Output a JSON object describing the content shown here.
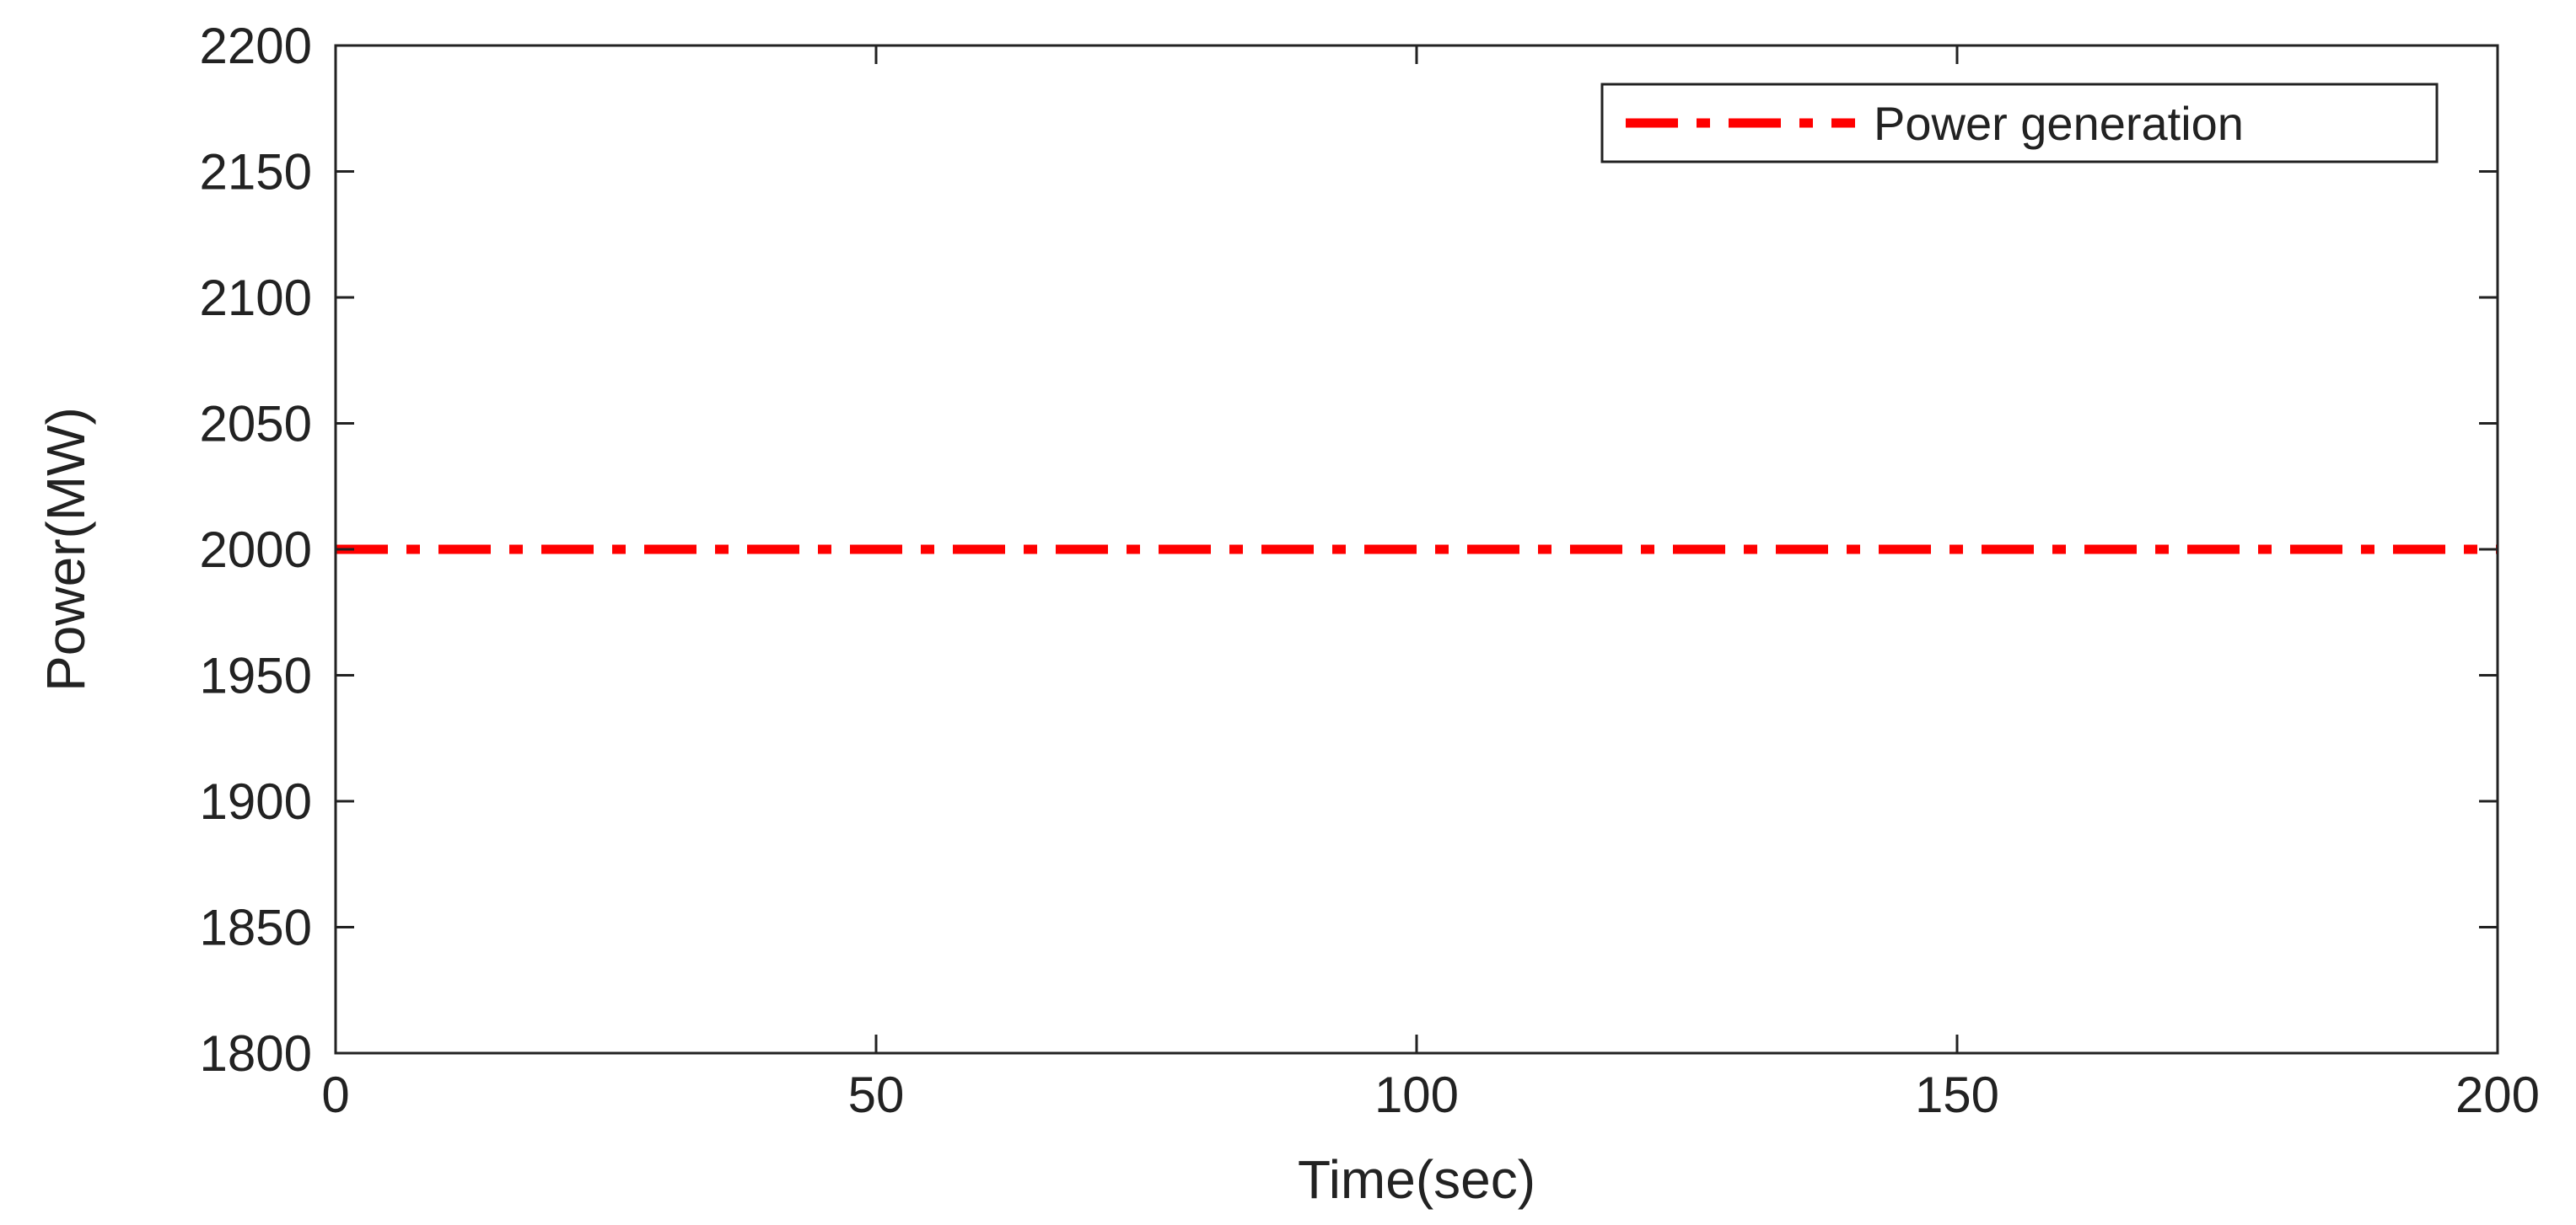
{
  "chart_data": {
    "type": "line",
    "title": "",
    "xlabel": "Time(sec)",
    "ylabel": "Power(MW)",
    "xlim": [
      0,
      200
    ],
    "ylim": [
      1800,
      2200
    ],
    "xticks": [
      0,
      50,
      100,
      150,
      200
    ],
    "yticks": [
      1800,
      1850,
      1900,
      1950,
      2000,
      2050,
      2100,
      2150,
      2200
    ],
    "grid": false,
    "legend_position": "top-right",
    "series": [
      {
        "name": "Power generation",
        "color": "#ff0000",
        "line_style": "dash-dot",
        "x": [
          0,
          200
        ],
        "y": [
          2000,
          2000
        ]
      }
    ]
  }
}
